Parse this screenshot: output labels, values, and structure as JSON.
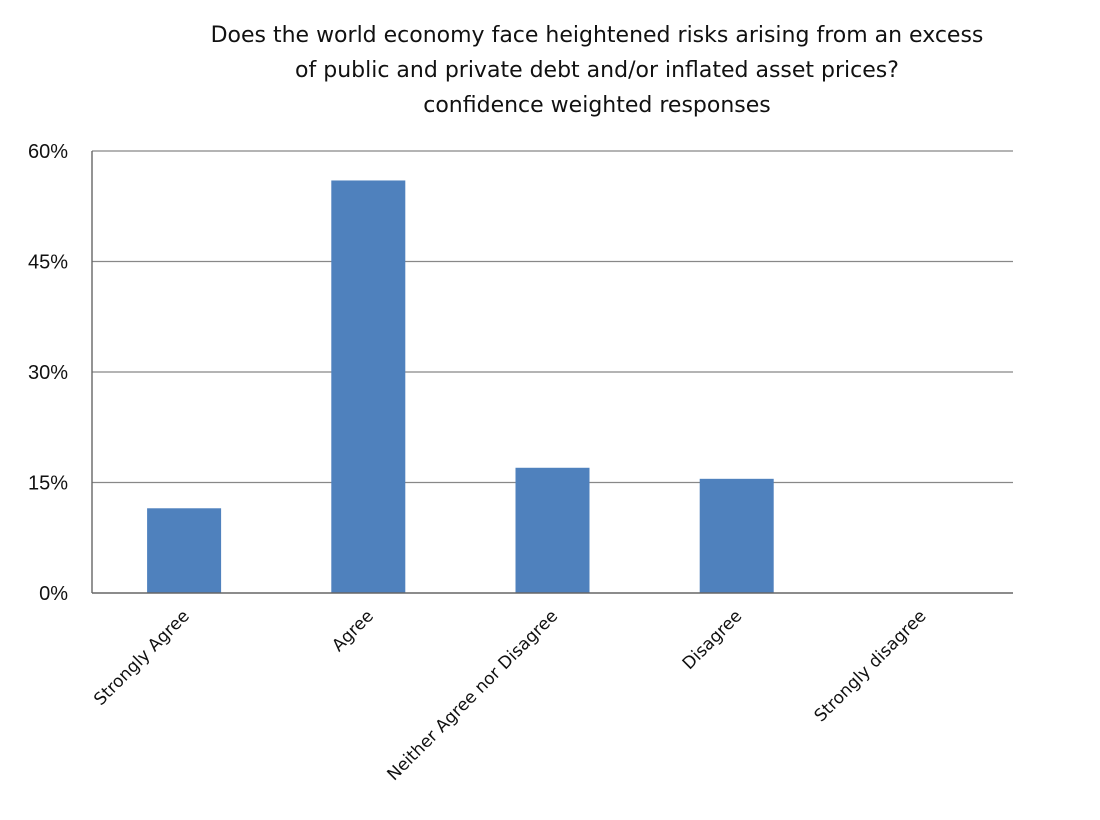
{
  "chart_data": {
    "type": "bar",
    "title": "Does the world economy face heightened risks arising from an excess of public and private debt and/or inflated asset prices?",
    "title_lines": [
      "Does the world economy face heightened risks arising from an excess",
      "of public and private debt and/or inflated asset prices?"
    ],
    "subtitle": "confidence weighted responses",
    "xlabel": "",
    "ylabel": "",
    "categories": [
      "Strongly Agree",
      "Agree",
      "Neither Agree nor Disagree",
      "Disagree",
      "Strongly disagree"
    ],
    "values": [
      11.5,
      56,
      17,
      15.5,
      0
    ],
    "ylim": [
      0,
      60
    ],
    "yticks": [
      0,
      15,
      30,
      45,
      60
    ],
    "ytick_labels": [
      "0%",
      "15%",
      "30%",
      "45%",
      "60%"
    ],
    "grid": true,
    "legend": "none",
    "bar_color": "#4f81bd"
  }
}
